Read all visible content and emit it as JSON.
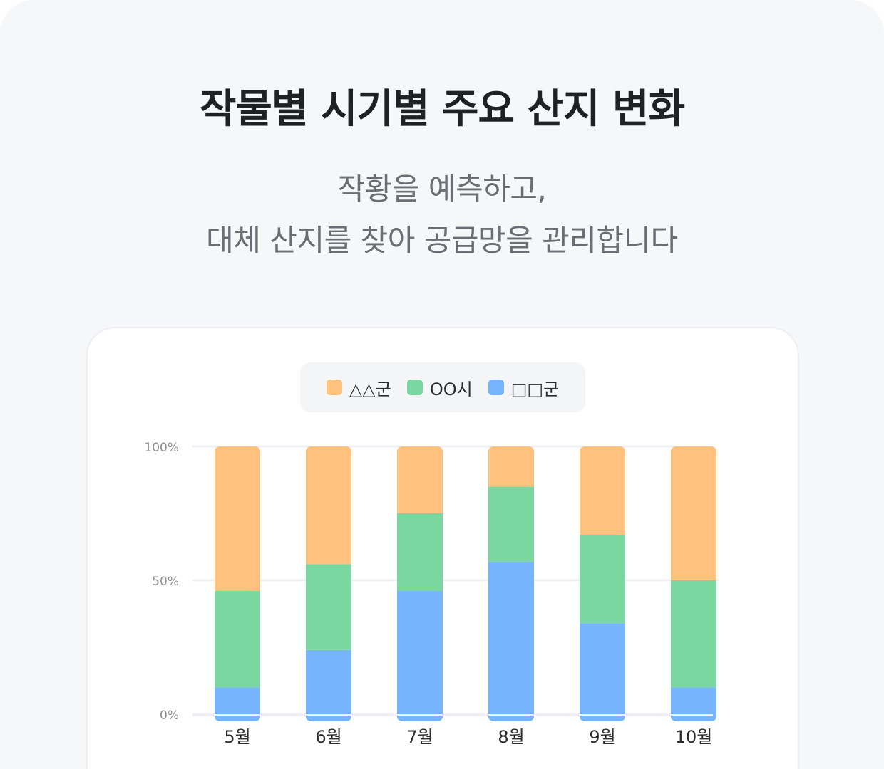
{
  "header": {
    "title": "작물별 시기별 주요 산지 변화",
    "subtitle_line1": "작황을 예측하고,",
    "subtitle_line2": "대체 산지를 찾아 공급망을 관리합니다"
  },
  "colors": {
    "orange": "#fec27e",
    "green": "#7bd7a0",
    "blue": "#76b4fd",
    "grid": "#eef0f3",
    "tick_text": "#8a8d92",
    "category_text": "#2b2d31"
  },
  "chart_data": {
    "type": "bar",
    "stacked": true,
    "categories": [
      "5월",
      "6월",
      "7월",
      "8월",
      "9월",
      "10월"
    ],
    "series": [
      {
        "name": "□□군",
        "color": "#76b4fd",
        "values": [
          10,
          24,
          46,
          57,
          34,
          10
        ]
      },
      {
        "name": "OO시",
        "color": "#7bd7a0",
        "values": [
          36,
          32,
          29,
          28,
          33,
          40
        ]
      },
      {
        "name": "△△군",
        "color": "#fec27e",
        "values": [
          54,
          44,
          25,
          15,
          33,
          50
        ]
      }
    ],
    "legend_order": [
      "△△군",
      "OO시",
      "□□군"
    ],
    "yticks": [
      "0%",
      "50%",
      "100%"
    ],
    "ylim": [
      0,
      100
    ],
    "legend_position": "top-center",
    "grid": true
  }
}
